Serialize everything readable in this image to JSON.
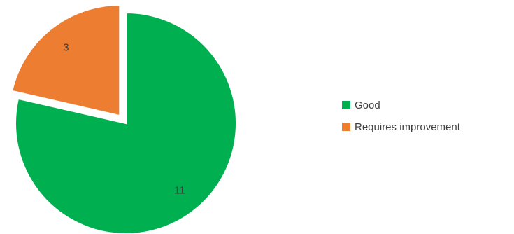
{
  "chart_data": {
    "type": "pie",
    "title": "",
    "slices": [
      {
        "label": "Good",
        "value": 11,
        "color": "#00B050",
        "exploded": false
      },
      {
        "label": "Requires improvement",
        "value": 3,
        "color": "#ED7D31",
        "exploded": true
      }
    ],
    "legend_position": "right"
  },
  "legend": {
    "items": [
      {
        "label": "Good",
        "color": "#00B050"
      },
      {
        "label": "Requires improvement",
        "color": "#ED7D31"
      }
    ]
  },
  "data_labels": [
    "11",
    "3"
  ]
}
